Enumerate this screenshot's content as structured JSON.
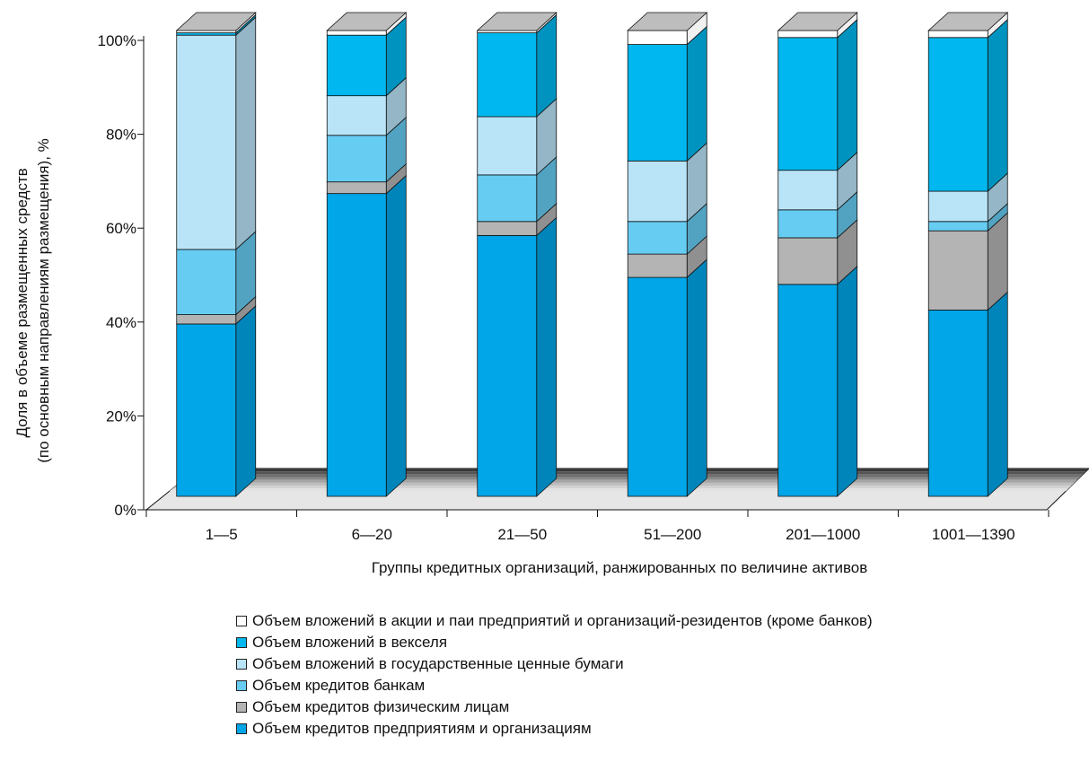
{
  "chart_data": {
    "type": "bar",
    "stacked": true,
    "three_d": true,
    "title": "",
    "xlabel": "Группы кредитных организаций, ранжированных по величине активов",
    "ylabel_line1": "Доля в объеме размещенных средств",
    "ylabel_line2": "(по основным направлениям размещения), %",
    "ylim": [
      0,
      100
    ],
    "yticks": [
      "0%",
      "20%",
      "40%",
      "60%",
      "80%",
      "100%"
    ],
    "categories": [
      "1—5",
      "6—20",
      "21—50",
      "51—200",
      "201—1000",
      "1001—1390"
    ],
    "grid": false,
    "legend_position": "bottom",
    "series": [
      {
        "name": "Объем кредитов предприятиям и организациям",
        "color": "#00a6e8",
        "values": [
          37,
          65,
          56,
          47,
          45.5,
          40
        ]
      },
      {
        "name": "Объем кредитов физическим лицам",
        "color": "#b4b4b4",
        "values": [
          2,
          2.5,
          3,
          5,
          10,
          17
        ]
      },
      {
        "name": "Объем кредитов банкам",
        "color": "#66ccf2",
        "values": [
          14,
          10,
          10,
          7,
          6,
          2
        ]
      },
      {
        "name": "Объем вложений в государственные ценные бумаги",
        "color": "#b9e4f8",
        "values": [
          46,
          8.5,
          12.5,
          13,
          8.5,
          6.5
        ]
      },
      {
        "name": "Объем вложений в векселя",
        "color": "#00b8ef",
        "values": [
          0.5,
          13,
          18,
          25,
          28.5,
          33
        ]
      },
      {
        "name": "Объем вложений в акции и паи предприятий и организаций-резидентов (кроме банков)",
        "color": "#ffffff",
        "values": [
          0.5,
          1,
          0.5,
          3,
          1.5,
          1.5
        ]
      }
    ],
    "legend_order": [
      5,
      4,
      3,
      2,
      1,
      0
    ]
  }
}
